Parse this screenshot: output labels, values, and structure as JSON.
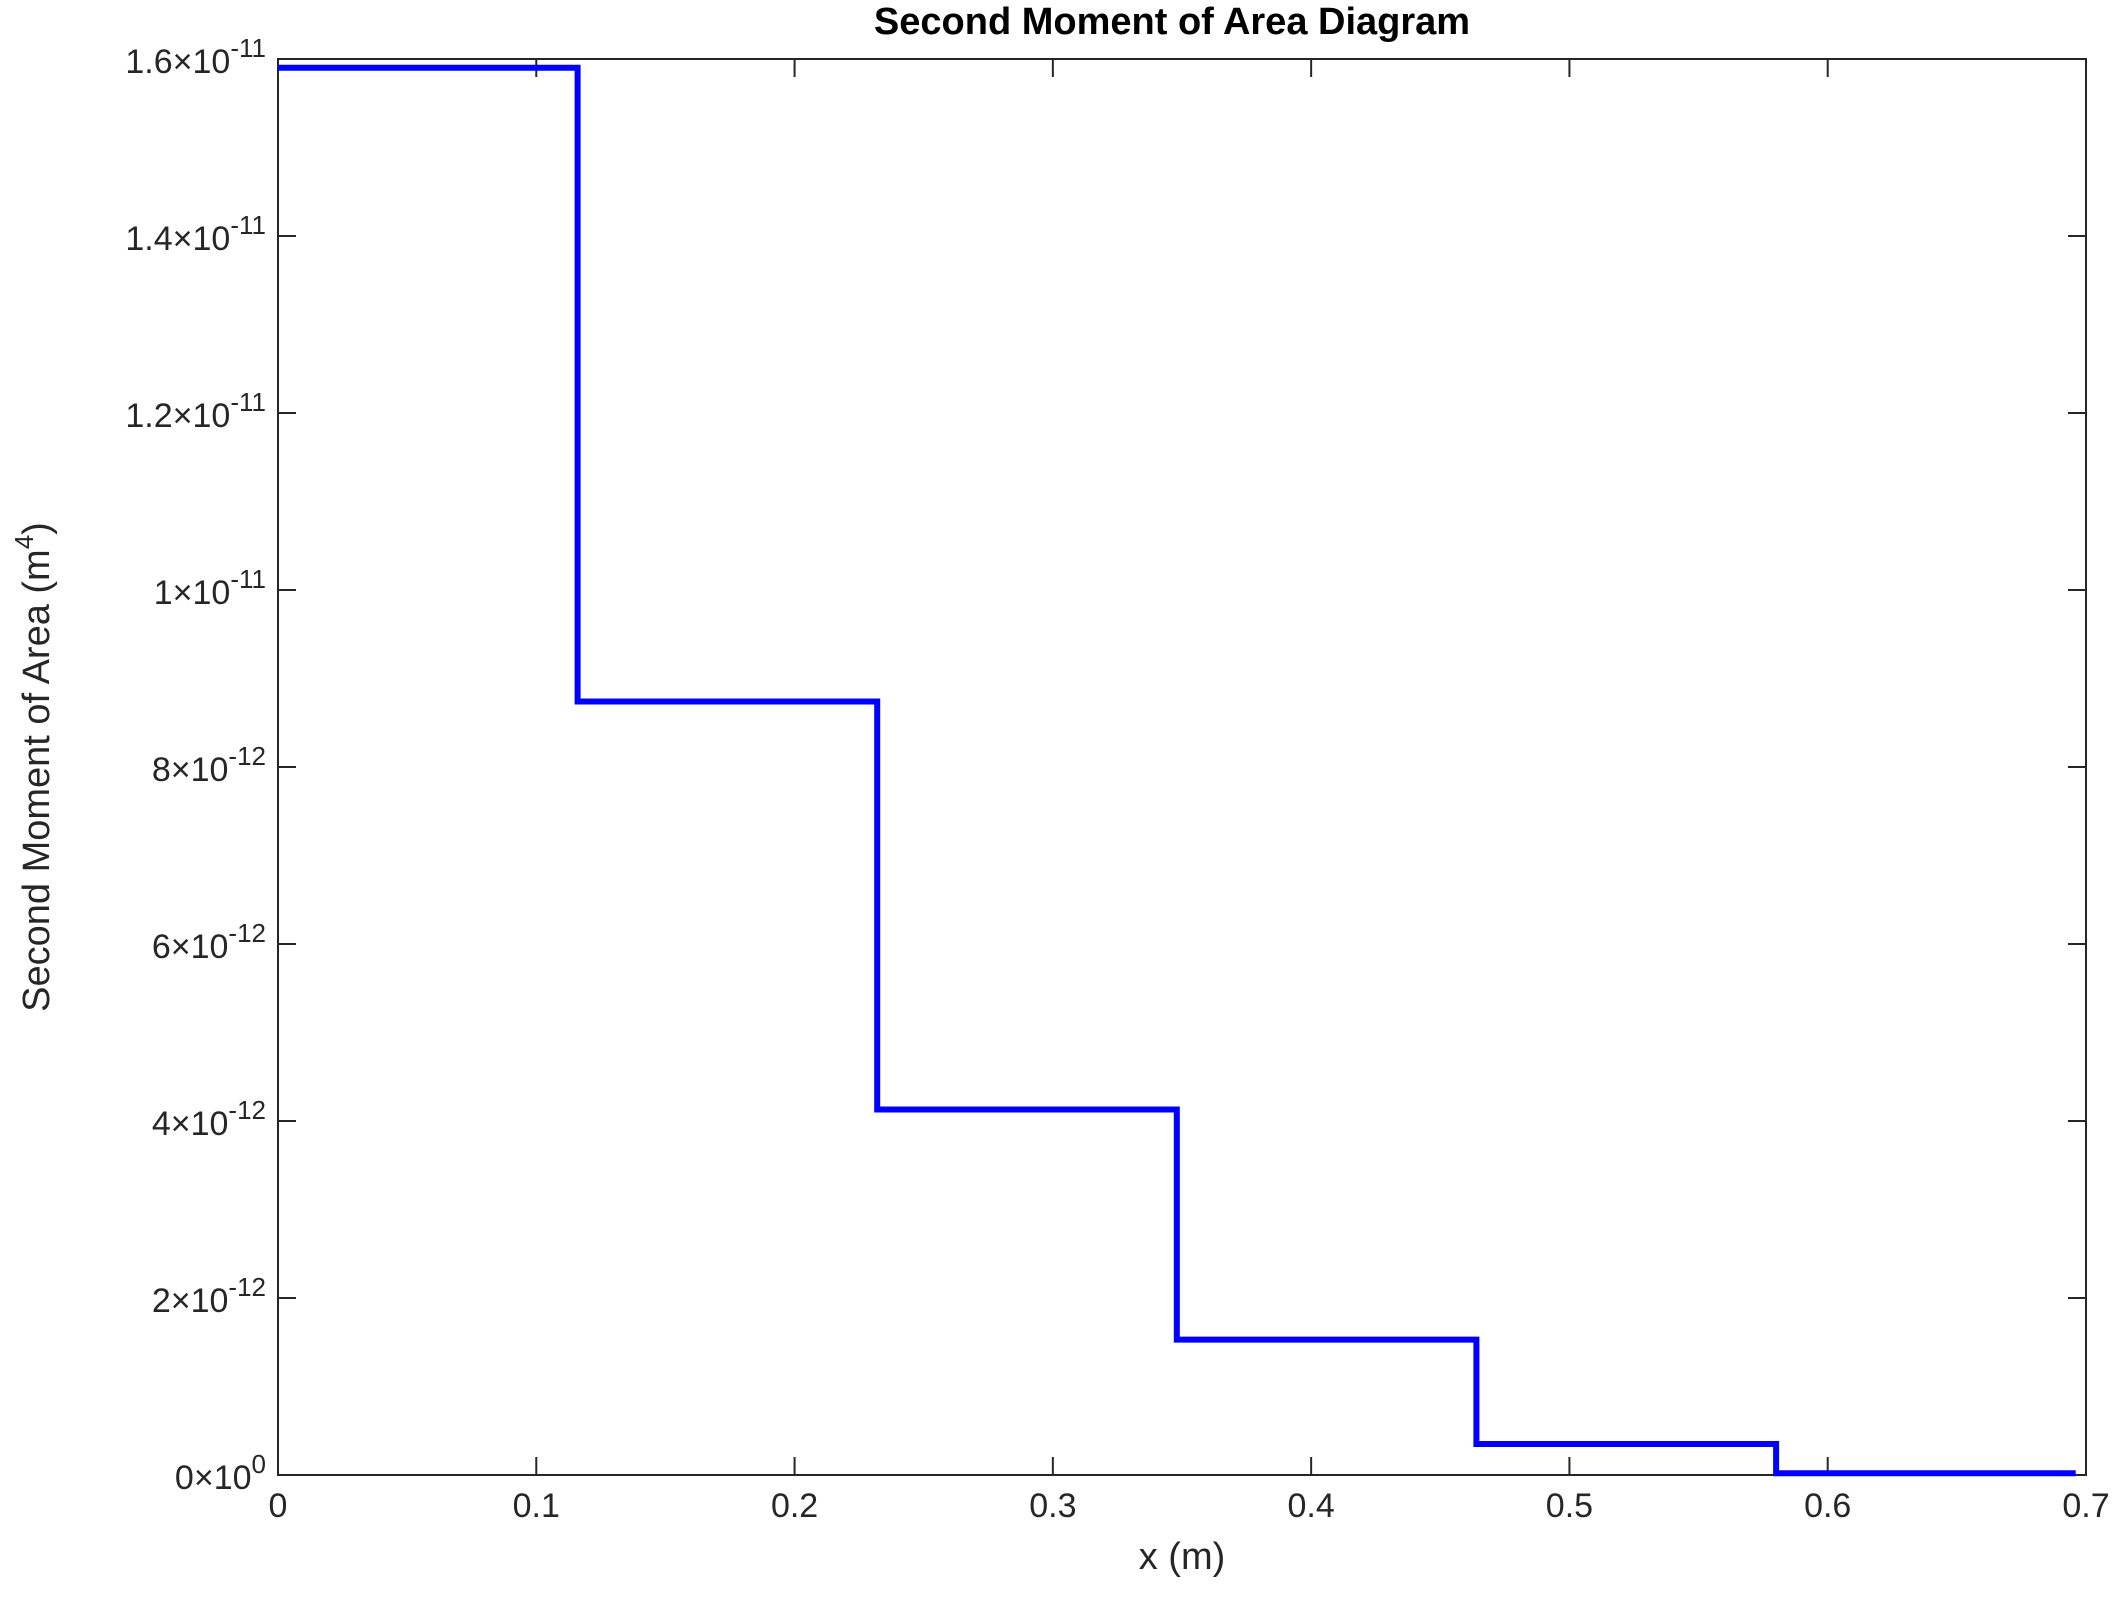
{
  "chart_data": {
    "type": "line",
    "title": "Second Moment of Area Diagram",
    "xlabel": "x (m)",
    "ylabel": {
      "text": "Second Moment of Area (m",
      "superscript": "4",
      "close": ")"
    },
    "xlim": [
      0,
      0.7
    ],
    "ylim": [
      0,
      1.6e-11
    ],
    "grid": false,
    "x_ticks": [
      {
        "value": 0,
        "label": "0"
      },
      {
        "value": 0.1,
        "label": "0.1"
      },
      {
        "value": 0.2,
        "label": "0.2"
      },
      {
        "value": 0.3,
        "label": "0.3"
      },
      {
        "value": 0.4,
        "label": "0.4"
      },
      {
        "value": 0.5,
        "label": "0.5"
      },
      {
        "value": 0.6,
        "label": "0.6"
      },
      {
        "value": 0.7,
        "label": "0.7"
      }
    ],
    "y_ticks": [
      {
        "value": 0,
        "mantissa": "0",
        "exponent": "0"
      },
      {
        "value": 2e-12,
        "mantissa": "2",
        "exponent": "-12"
      },
      {
        "value": 4e-12,
        "mantissa": "4",
        "exponent": "-12"
      },
      {
        "value": 6e-12,
        "mantissa": "6",
        "exponent": "-12"
      },
      {
        "value": 8e-12,
        "mantissa": "8",
        "exponent": "-12"
      },
      {
        "value": 1e-11,
        "mantissa": "1",
        "exponent": "-11"
      },
      {
        "value": 1.2e-11,
        "mantissa": "1.2",
        "exponent": "-11"
      },
      {
        "value": 1.4e-11,
        "mantissa": "1.4",
        "exponent": "-11"
      },
      {
        "value": 1.6e-11,
        "mantissa": "1.6",
        "exponent": "-11"
      }
    ],
    "series": [
      {
        "color": "#0000ff",
        "x": [
          0,
          0.116,
          0.116,
          0.232,
          0.232,
          0.348,
          0.348,
          0.464,
          0.464,
          0.58,
          0.58,
          0.696
        ],
        "y": [
          1.59e-11,
          1.59e-11,
          8.74e-12,
          8.74e-12,
          4.13e-12,
          4.13e-12,
          1.53e-12,
          1.53e-12,
          3.5e-13,
          3.5e-13,
          2e-14,
          2e-14
        ]
      }
    ]
  }
}
